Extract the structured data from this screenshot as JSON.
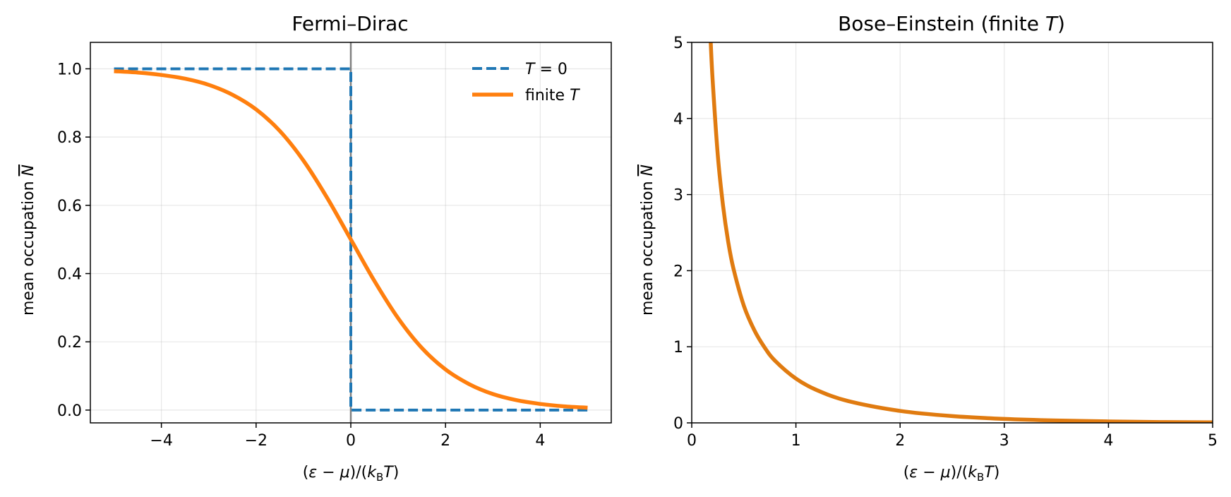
{
  "chart_data": [
    {
      "type": "line",
      "title": "Fermi–Dirac",
      "xlabel": "(ε − μ)/(k_B T)",
      "ylabel": "mean occupation N̄",
      "xlim": [
        -5.5,
        5.5
      ],
      "ylim": [
        -0.0375,
        1.0775
      ],
      "xticks": [
        -4,
        -2,
        0,
        2,
        4
      ],
      "yticks": [
        0.0,
        0.2,
        0.4,
        0.6,
        0.8,
        1.0
      ],
      "xtick_labels": [
        "−4",
        "−2",
        "0",
        "2",
        "4"
      ],
      "ytick_labels": [
        "0.0",
        "0.2",
        "0.4",
        "0.6",
        "0.8",
        "1.0"
      ],
      "grid": true,
      "legend_position": "top-right",
      "vertical_reference_line_x": 0,
      "series": [
        {
          "name": "T = 0",
          "color": "#1f77b4",
          "style": "dashed",
          "x": [
            -5,
            0,
            0,
            5
          ],
          "y": [
            1,
            1,
            0,
            0
          ]
        },
        {
          "name": "finite T",
          "color": "#ff7f0e",
          "style": "solid",
          "x": [
            -5,
            -4.5,
            -4,
            -3.5,
            -3,
            -2.5,
            -2,
            -1.5,
            -1,
            -0.5,
            0,
            0.5,
            1,
            1.5,
            2,
            2.5,
            3,
            3.5,
            4,
            4.5,
            5
          ],
          "y": [
            0.993,
            0.989,
            0.982,
            0.971,
            0.953,
            0.924,
            0.881,
            0.818,
            0.731,
            0.622,
            0.5,
            0.378,
            0.269,
            0.182,
            0.119,
            0.076,
            0.047,
            0.029,
            0.018,
            0.011,
            0.007
          ]
        }
      ]
    },
    {
      "type": "line",
      "title": "Bose–Einstein (finite T)",
      "xlabel": "(ε − μ)/(k_B T)",
      "ylabel": "mean occupation N̄",
      "xlim": [
        0,
        5
      ],
      "ylim": [
        0,
        5
      ],
      "xticks": [
        0,
        1,
        2,
        3,
        4,
        5
      ],
      "yticks": [
        0,
        1,
        2,
        3,
        4,
        5
      ],
      "xtick_labels": [
        "0",
        "1",
        "2",
        "3",
        "4",
        "5"
      ],
      "ytick_labels": [
        "0",
        "1",
        "2",
        "3",
        "4",
        "5"
      ],
      "grid": true,
      "series": [
        {
          "color": "#e07b10",
          "style": "solid",
          "x": [
            0.18,
            0.2,
            0.25,
            0.3,
            0.35,
            0.4,
            0.5,
            0.6,
            0.7,
            0.8,
            1.0,
            1.2,
            1.5,
            2.0,
            2.5,
            3.0,
            3.5,
            4.0,
            4.5,
            5.0
          ],
          "y": [
            5.07,
            4.52,
            3.52,
            2.86,
            2.38,
            2.03,
            1.54,
            1.22,
            0.99,
            0.816,
            0.582,
            0.431,
            0.287,
            0.157,
            0.089,
            0.052,
            0.031,
            0.019,
            0.011,
            0.007
          ]
        }
      ]
    }
  ],
  "icons": {
    "legend_dash_line": "dashed-line-swatch",
    "legend_solid_line": "solid-line-swatch"
  },
  "colors": {
    "reference_line": "#808080",
    "axes": "#000000"
  }
}
